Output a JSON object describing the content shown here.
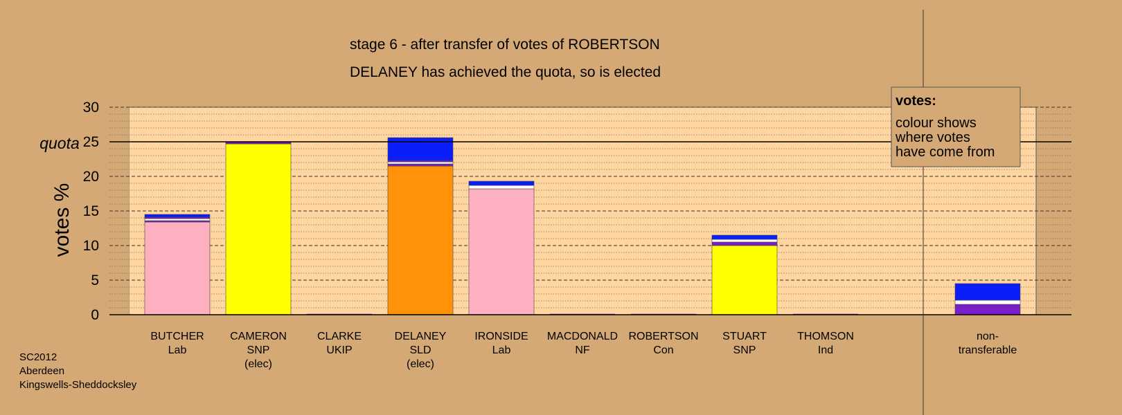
{
  "chart_data": {
    "type": "bar",
    "stacked": true,
    "title": "stage 6 - after transfer of votes of ROBERTSON",
    "subtitle": "DELANEY has achieved the quota, so is elected",
    "ylabel": "votes %",
    "ylim": [
      0,
      30
    ],
    "yticks": [
      "0",
      "5",
      "10",
      "15",
      "20",
      "25",
      "30"
    ],
    "quota": {
      "label": "quota",
      "value": 25
    },
    "categories": [
      {
        "name": "BUTCHER",
        "party": "Lab",
        "note": ""
      },
      {
        "name": "CAMERON",
        "party": "SNP",
        "note": "(elec)"
      },
      {
        "name": "CLARKE",
        "party": "UKIP",
        "note": ""
      },
      {
        "name": "DELANEY",
        "party": "SLD",
        "note": "(elec)"
      },
      {
        "name": "IRONSIDE",
        "party": "Lab",
        "note": ""
      },
      {
        "name": "MACDONALD",
        "party": "NF",
        "note": ""
      },
      {
        "name": "ROBERTSON",
        "party": "Con",
        "note": ""
      },
      {
        "name": "STUART",
        "party": "SNP",
        "note": ""
      },
      {
        "name": "THOMSON",
        "party": "Ind",
        "note": ""
      },
      {
        "name": "non-",
        "party": "transferable",
        "note": ""
      }
    ],
    "bars": [
      [
        {
          "color": "#ffb0c0",
          "value": 13.4
        },
        {
          "color": "#7a1ec8",
          "value": 0.2
        },
        {
          "color": "#ffffff",
          "value": 0.3
        },
        {
          "color": "#7a1ec8",
          "value": 0.2
        },
        {
          "color": "#0a1ef8",
          "value": 0.4
        }
      ],
      [
        {
          "color": "#ffff00",
          "value": 24.7
        },
        {
          "color": "#7a1ec8",
          "value": 0.3
        }
      ],
      [],
      [
        {
          "color": "#ff9208",
          "value": 21.5
        },
        {
          "color": "#7a1ec8",
          "value": 0.3
        },
        {
          "color": "#ffffff",
          "value": 0.3
        },
        {
          "color": "#7a1ec8",
          "value": 0.2
        },
        {
          "color": "#0a1ef8",
          "value": 3.3
        }
      ],
      [
        {
          "color": "#ffb0c0",
          "value": 18.2
        },
        {
          "color": "#ffffff",
          "value": 0.5
        },
        {
          "color": "#0a1ef8",
          "value": 0.6
        }
      ],
      [],
      [],
      [
        {
          "color": "#ffff00",
          "value": 10.0
        },
        {
          "color": "#7a1ec8",
          "value": 0.5
        },
        {
          "color": "#ffffff",
          "value": 0.4
        },
        {
          "color": "#0a1ef8",
          "value": 0.6
        }
      ],
      [],
      [
        {
          "color": "#7a1ec8",
          "value": 1.5
        },
        {
          "color": "#ffffff",
          "value": 0.6
        },
        {
          "color": "#0a1ef8",
          "value": 2.4
        }
      ]
    ],
    "legend": {
      "heading": "votes:",
      "lines": [
        "colour shows",
        "where votes",
        "have come from"
      ],
      "placement": "top-right"
    },
    "footer": [
      "SC2012",
      "Aberdeen",
      "Kingswells-Sheddocksley"
    ],
    "colors": {
      "background": "#d5a975",
      "plot_area": "#ffd5a0",
      "Lab": "#ffb0c0",
      "SNP": "#ffff00",
      "SLD": "#ff9208",
      "Con": "#0a1ef8",
      "other": "#7a1ec8"
    }
  }
}
